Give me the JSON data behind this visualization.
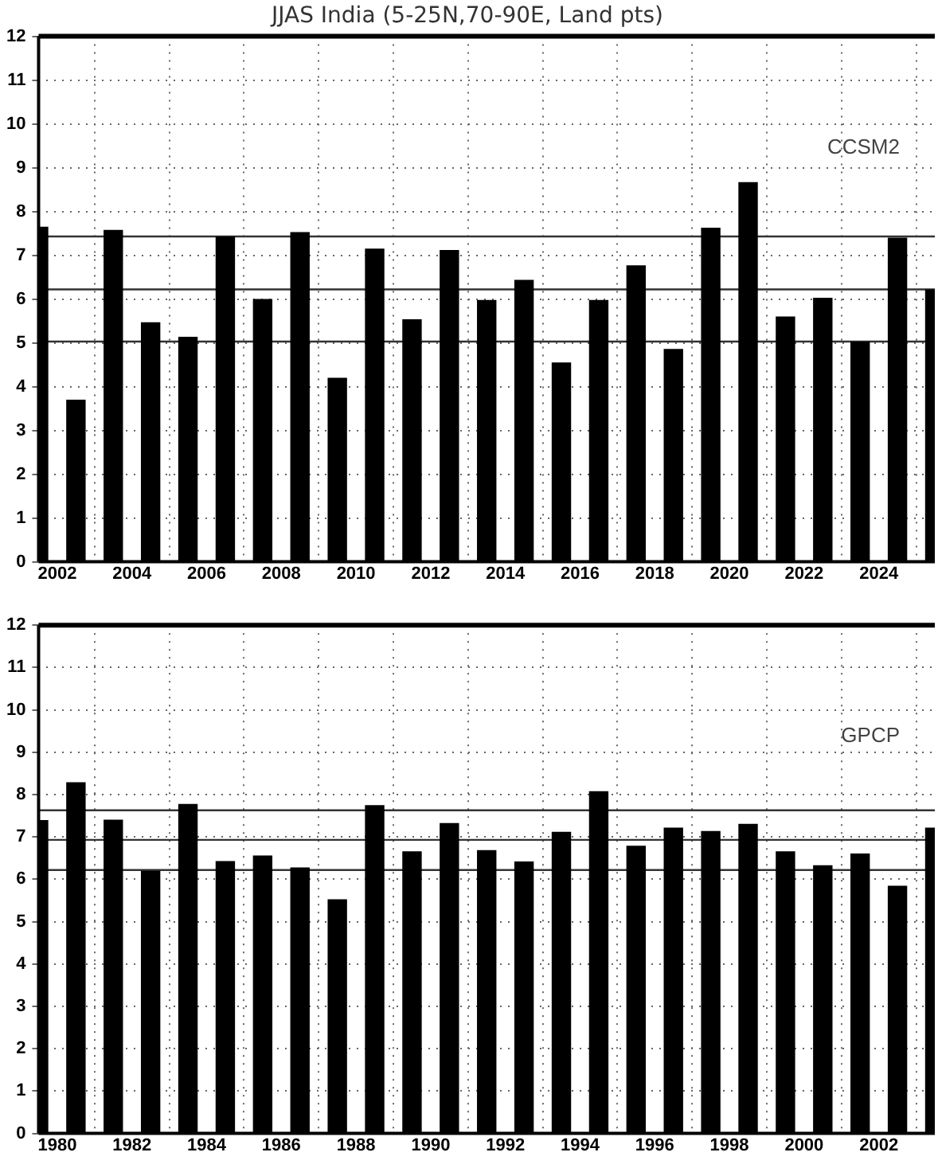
{
  "chart_data": [
    {
      "type": "bar",
      "title": "JJAS India (5-25N,70-90E, Land pts)",
      "x": [
        2001.5,
        2002.5,
        2003.5,
        2004.5,
        2005.5,
        2006.5,
        2007.5,
        2008.5,
        2009.5,
        2010.5,
        2011.5,
        2012.5,
        2013.5,
        2014.5,
        2015.5,
        2016.5,
        2017.5,
        2018.5,
        2019.5,
        2020.5,
        2021.5,
        2022.5,
        2023.5,
        2024.5,
        2025.5
      ],
      "series": [
        {
          "color": "#000000",
          "values": [
            7.65,
            3.7,
            7.58,
            5.47,
            5.14,
            7.43,
            6.0,
            7.53,
            4.2,
            7.15,
            5.54,
            7.12,
            5.98,
            6.44,
            4.55,
            5.98,
            6.77,
            4.86,
            7.63,
            8.67,
            5.6,
            6.03,
            5.03,
            7.4,
            6.22
          ]
        }
      ],
      "xlim": [
        2001.5,
        2025.5
      ],
      "xticks": [
        2002,
        2004,
        2006,
        2008,
        2010,
        2012,
        2014,
        2016,
        2018,
        2020,
        2022,
        2024
      ],
      "ylim": [
        0,
        12
      ],
      "yticks": [
        0,
        1,
        2,
        3,
        4,
        5,
        6,
        7,
        8,
        9,
        10,
        11,
        12
      ],
      "grid": true,
      "legend": false,
      "ref_lines": [
        {
          "axis": "y",
          "value": 7.43,
          "color": "#333333"
        },
        {
          "axis": "y",
          "value": 6.22,
          "color": "#333333"
        },
        {
          "axis": "y",
          "value": 5.03,
          "color": "#333333"
        }
      ],
      "annotations": [
        "CCSM2"
      ]
    },
    {
      "type": "bar",
      "x": [
        1979.5,
        1980.5,
        1981.5,
        1982.5,
        1983.5,
        1984.5,
        1985.5,
        1986.5,
        1987.5,
        1988.5,
        1989.5,
        1990.5,
        1991.5,
        1992.5,
        1993.5,
        1994.5,
        1995.5,
        1996.5,
        1997.5,
        1998.5,
        1999.5,
        2000.5,
        2001.5,
        2002.5,
        2003.5
      ],
      "series": [
        {
          "color": "#000000",
          "values": [
            7.4,
            8.29,
            7.41,
            6.2,
            7.78,
            6.43,
            6.56,
            6.28,
            5.53,
            7.75,
            6.66,
            7.33,
            6.69,
            6.42,
            7.12,
            8.08,
            6.79,
            7.22,
            7.14,
            7.31,
            6.66,
            6.33,
            6.61,
            5.85,
            7.22
          ]
        }
      ],
      "xlim": [
        1979.5,
        2003.5
      ],
      "xticks": [
        1980,
        1982,
        1984,
        1986,
        1988,
        1990,
        1992,
        1994,
        1996,
        1998,
        2000,
        2002
      ],
      "ylim": [
        0,
        12
      ],
      "yticks": [
        0,
        1,
        2,
        3,
        4,
        5,
        6,
        7,
        8,
        9,
        10,
        11,
        12
      ],
      "grid": true,
      "legend": false,
      "ref_lines": [
        {
          "axis": "y",
          "value": 7.63,
          "color": "#333333"
        },
        {
          "axis": "y",
          "value": 6.93,
          "color": "#333333"
        },
        {
          "axis": "y",
          "value": 6.22,
          "color": "#333333"
        }
      ],
      "annotations": [
        "GPCP"
      ]
    }
  ]
}
